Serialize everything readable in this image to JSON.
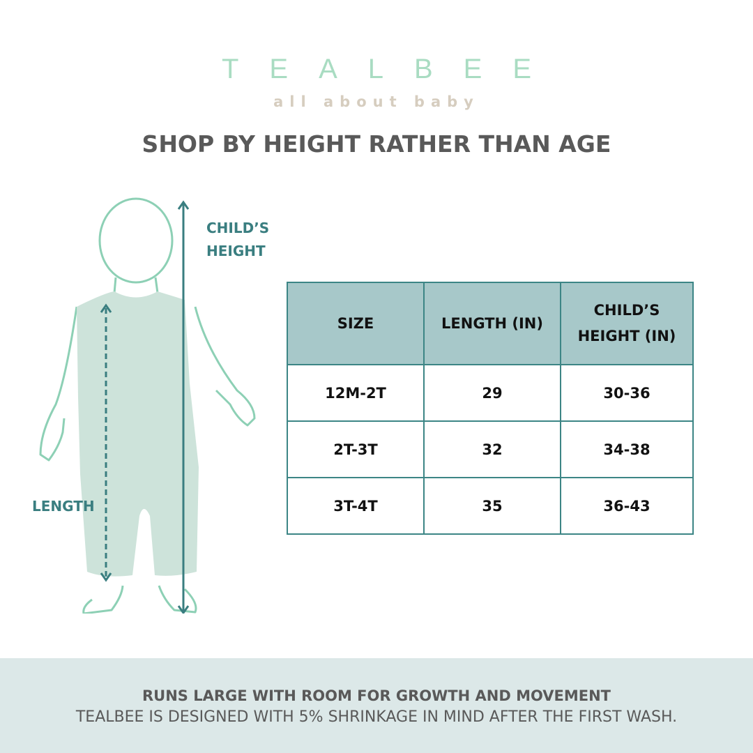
{
  "logo": {
    "brand": "TEALBEE",
    "tagline": "all about baby"
  },
  "title": "SHOP BY HEIGHT RATHER THAN AGE",
  "figure": {
    "height_label_1": "CHILD’S",
    "height_label_2": "HEIGHT",
    "length_label": "LENGTH"
  },
  "table": {
    "headers": [
      "SIZE",
      "LENGTH (IN)",
      "CHILD’S HEIGHT (IN)"
    ],
    "rows": [
      [
        "12M-2T",
        "29",
        "30-36"
      ],
      [
        "2T-3T",
        "32",
        "34-38"
      ],
      [
        "3T-4T",
        "35",
        "36-43"
      ]
    ]
  },
  "footer": {
    "headline": "RUNS LARGE WITH ROOM FOR GROWTH AND MOVEMENT",
    "note": "TEALBEE IS DESIGNED WITH 5% SHRINKAGE IN MIND AFTER THE FIRST WASH."
  },
  "colors": {
    "accent": "#3a7e80",
    "logo": "#a9dcc2",
    "header_bg": "#a7c8c9",
    "footer_bg": "#dce8e8"
  }
}
